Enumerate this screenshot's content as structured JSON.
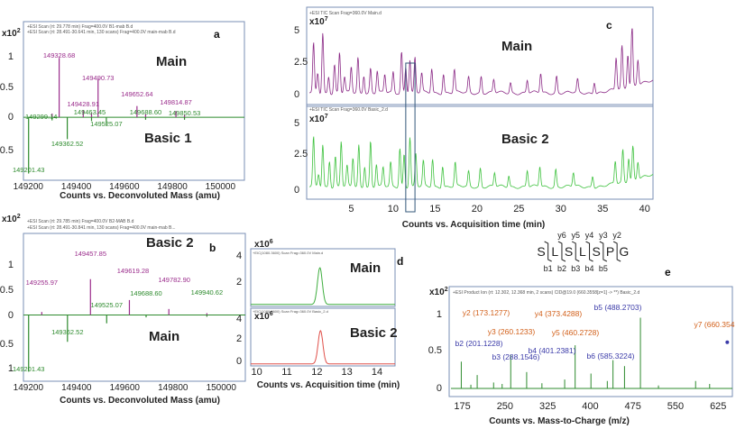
{
  "chart_data": [
    {
      "type": "line",
      "panel_letter": "a",
      "headers": [
        "+ESI Scan (rt: 29.778 min) Frag=400.0V B1-mab B.d",
        "+ESI Scan (rt: 28.491-30.641 min, 130 scans) Frag=400.0V main-mab B.d"
      ],
      "exponent_label": "x10",
      "exponent_power": "2",
      "xlabel": "Counts vs. Deconvoluted Mass (amu)",
      "xlim": [
        149180,
        150100
      ],
      "ylim": [
        -0.95,
        1.3
      ],
      "x_ticks": [
        "149200",
        "149400",
        "149600",
        "149800",
        "150000"
      ],
      "y_ticks": [
        "1",
        "0.5",
        "0",
        "-0.5"
      ],
      "series": [
        {
          "name": "Main",
          "color": "#9b2d8c",
          "peaks": [
            [
              149299.14,
              0.06
            ],
            [
              149328.68,
              0.95
            ],
            [
              149428.91,
              0.11
            ],
            [
              149463.45,
              0.07
            ],
            [
              149490.73,
              0.62
            ],
            [
              149652.64,
              0.18
            ],
            [
              149688.6,
              0.05
            ],
            [
              149814.87,
              0.1
            ],
            [
              149850.53,
              0.04
            ]
          ],
          "labels": [
            [
              "149328.68",
              149328.68
            ],
            [
              "149490.73",
              149490.73
            ],
            [
              "149428.91",
              149428.91
            ],
            [
              "149652.64",
              149652.64
            ],
            [
              "149814.87",
              149814.87
            ]
          ]
        },
        {
          "name": "Basic 1",
          "color": "#2e8b2e",
          "peaks": [
            [
              149201.43,
              -0.9
            ],
            [
              149299.14,
              -0.05
            ],
            [
              149362.52,
              -0.35
            ],
            [
              149463.45,
              -0.06
            ],
            [
              149525.07,
              -0.12
            ],
            [
              149688.6,
              -0.04
            ],
            [
              149850.53,
              -0.04
            ]
          ],
          "labels": [
            [
              "149201.43",
              149201.43
            ],
            [
              "149362.52",
              149362.52
            ],
            [
              "149525.07",
              149525.07
            ],
            [
              "149299.14",
              149299.14
            ],
            [
              "149463.45",
              149463.45
            ],
            [
              "149688.60",
              149688.6
            ],
            [
              "149850.53",
              149850.53
            ]
          ]
        }
      ],
      "annotations": [
        "Main",
        "Basic 1"
      ]
    },
    {
      "type": "line",
      "panel_letter": "b",
      "headers": [
        "+ESI Scan (rt: 29.785 min) Frag=400.0V B2-MAB B.d",
        "+ESI Scan (rt: 28.491-30.841 min, 130 scans) Frag=400.0V main-mab B..."
      ],
      "exponent_label": "x10",
      "exponent_power": "2",
      "xlabel": "Counts vs. Deconvoluted Mass (amu)",
      "xlim": [
        149180,
        150100
      ],
      "ylim": [
        -1.05,
        1.2
      ],
      "x_ticks": [
        "149200",
        "149400",
        "149600",
        "149800",
        "150000"
      ],
      "y_ticks": [
        "1",
        "0.5",
        "0",
        "-0.5",
        "1"
      ],
      "series": [
        {
          "name": "Basic 2",
          "color": "#9b2d8c",
          "peaks": [
            [
              149255.97,
              0.05
            ],
            [
              149457.85,
              0.6
            ],
            [
              149619.28,
              0.25
            ],
            [
              149782.9,
              0.1
            ],
            [
              149940.62,
              0.03
            ]
          ],
          "labels": [
            [
              "149457.85",
              149457.85
            ],
            [
              "149255.97",
              149255.97
            ],
            [
              "149619.28",
              149619.28
            ],
            [
              "149782.90",
              149782.9
            ]
          ]
        },
        {
          "name": "Main",
          "color": "#2e8b2e",
          "peaks": [
            [
              149201.43,
              -0.95
            ],
            [
              149362.52,
              -0.45
            ],
            [
              149525.07,
              -0.14
            ],
            [
              149688.6,
              -0.04
            ],
            [
              149940.62,
              -0.03
            ]
          ],
          "labels": [
            [
              "149201.43",
              149201.43
            ],
            [
              "149362.52",
              149362.52
            ],
            [
              "149525.07",
              149525.07
            ],
            [
              "149688.60",
              149688.6
            ],
            [
              "149940.62",
              149940.62
            ]
          ]
        }
      ],
      "annotations": [
        "Basic 2",
        "Main"
      ]
    },
    {
      "type": "line",
      "panel_letter": "c",
      "xlabel": "Counts vs. Acquisition time (min)",
      "xlim": [
        0,
        41
      ],
      "x_ticks": [
        "5",
        "10",
        "15",
        "20",
        "25",
        "30",
        "35",
        "40"
      ],
      "subplots": [
        {
          "name": "Main",
          "header": "+ESI TIC Scan Frag=360.0V Main.d",
          "exponent_label": "x10",
          "exponent_power": "7",
          "color": "#8b2a86",
          "ylim": [
            0,
            5.3
          ],
          "y_ticks": [
            "5",
            "2.5",
            "0"
          ],
          "peaks": [
            [
              0.5,
              3.8
            ],
            [
              1.0,
              1.5
            ],
            [
              1.6,
              4.7
            ],
            [
              2.3,
              1.3
            ],
            [
              3.0,
              2.2
            ],
            [
              3.6,
              3.1
            ],
            [
              4.2,
              1.2
            ],
            [
              5.0,
              2.0
            ],
            [
              5.8,
              2.7
            ],
            [
              6.5,
              1.4
            ],
            [
              7.3,
              1.9
            ],
            [
              8.1,
              1.7
            ],
            [
              9.0,
              1.4
            ],
            [
              10.0,
              1.6
            ],
            [
              11.0,
              3.2
            ],
            [
              11.5,
              2.0
            ],
            [
              12.0,
              2.6
            ],
            [
              12.6,
              2.7
            ],
            [
              13.4,
              1.5
            ],
            [
              14.6,
              1.9
            ],
            [
              16.0,
              1.5
            ],
            [
              17.3,
              1.8
            ],
            [
              19.0,
              1.2
            ],
            [
              20.5,
              1.3
            ],
            [
              22.0,
              1.0
            ],
            [
              24.0,
              0.8
            ],
            [
              26.0,
              1.0
            ],
            [
              27.6,
              1.5
            ],
            [
              29.5,
              1.3
            ],
            [
              32.0,
              1.0
            ],
            [
              34.0,
              0.9
            ],
            [
              36.6,
              2.5
            ],
            [
              37.3,
              3.3
            ],
            [
              38.0,
              2.6
            ],
            [
              38.5,
              4.8
            ],
            [
              39.2,
              2.0
            ]
          ]
        },
        {
          "name": "Basic 2",
          "header": "+ESI TIC Scan Frag=360.0V Basic_2.d",
          "exponent_label": "x10",
          "exponent_power": "7",
          "color": "#3fc23f",
          "ylim": [
            0,
            5.3
          ],
          "y_ticks": [
            "5",
            "2.5",
            "0"
          ],
          "peaks": [
            [
              0.5,
              3.9
            ],
            [
              1.1,
              1.0
            ],
            [
              1.6,
              3.4
            ],
            [
              2.4,
              2.1
            ],
            [
              3.1,
              2.4
            ],
            [
              3.8,
              3.6
            ],
            [
              4.5,
              1.6
            ],
            [
              5.2,
              2.3
            ],
            [
              5.9,
              3.3
            ],
            [
              6.6,
              1.7
            ],
            [
              7.3,
              3.6
            ],
            [
              8.0,
              1.8
            ],
            [
              8.8,
              1.5
            ],
            [
              9.7,
              1.9
            ],
            [
              10.8,
              3.1
            ],
            [
              11.3,
              2.6
            ],
            [
              12.0,
              4.0
            ],
            [
              12.7,
              2.6
            ],
            [
              13.6,
              2.0
            ],
            [
              14.7,
              2.2
            ],
            [
              15.9,
              1.7
            ],
            [
              17.4,
              1.9
            ],
            [
              19.0,
              1.2
            ],
            [
              20.4,
              1.5
            ],
            [
              22.1,
              1.1
            ],
            [
              23.8,
              0.9
            ],
            [
              26.0,
              1.3
            ],
            [
              27.5,
              1.6
            ],
            [
              29.4,
              1.4
            ],
            [
              31.5,
              1.1
            ],
            [
              33.8,
              0.9
            ],
            [
              36.5,
              1.8
            ],
            [
              37.4,
              2.6
            ],
            [
              38.1,
              1.9
            ],
            [
              38.6,
              2.7
            ],
            [
              39.2,
              1.4
            ]
          ]
        }
      ],
      "annotations": [
        "Main",
        "Basic 2"
      ]
    },
    {
      "type": "line",
      "panel_letter": "d",
      "xlabel": "Counts vs. Acquisition time (min)",
      "xlim": [
        9.8,
        14.6
      ],
      "x_ticks": [
        "10",
        "11",
        "12",
        "13",
        "14"
      ],
      "subplots": [
        {
          "name": "Main",
          "header": "+EIC(1080.3600) Scan Frag=360.0V Main.d",
          "exponent_label": "x10",
          "exponent_power": "6",
          "color": "#3fae3f",
          "ylim": [
            0,
            4.4
          ],
          "y_ticks": [
            "4",
            "2"
          ],
          "peak_center": 12.1,
          "peak_height": 3.2,
          "peak_width": 0.08
        },
        {
          "name": "Basic 2",
          "header": "+EIC(1080.3600) Scan Frag=360.0V Basic_2.d",
          "exponent_label": "x10",
          "exponent_power": "6",
          "color": "#e0504a",
          "ylim": [
            0,
            4.4
          ],
          "y_ticks": [
            "4",
            "2",
            "0"
          ],
          "peak_center": 12.12,
          "peak_height": 3.0,
          "peak_width": 0.08
        }
      ],
      "annotations": [
        "Main",
        "Basic 2"
      ]
    },
    {
      "type": "bar",
      "panel_letter": "e",
      "header": "+ESI Product Ion (rt: 12.302, 12.368 min, 2 scans) CID@19.0 (660.3558[z=1] -> **) Basic_2.d",
      "exponent_label": "x10",
      "exponent_power": "2",
      "xlabel": "Counts vs. Mass-to-Charge (m/z)",
      "xlim": [
        155,
        650
      ],
      "ylim": [
        0,
        1.15
      ],
      "x_ticks": [
        "175",
        "250",
        "325",
        "400",
        "475",
        "550",
        "625"
      ],
      "y_ticks": [
        "1",
        "0.5",
        "0"
      ],
      "sequence": [
        "S",
        "L",
        "S",
        "L",
        "S",
        "P",
        "G"
      ],
      "y_ions": [
        "y6",
        "y5",
        "y4",
        "y3",
        "y2"
      ],
      "b_ions": [
        "b1",
        "b2",
        "b3",
        "b4",
        "b5"
      ],
      "peaks": [
        [
          173.13,
          0.36
        ],
        [
          201.12,
          0.18
        ],
        [
          260.12,
          0.45
        ],
        [
          288.15,
          0.22
        ],
        [
          373.43,
          0.58
        ],
        [
          401.24,
          0.2
        ],
        [
          460.27,
          0.3
        ],
        [
          488.27,
          0.95
        ],
        [
          585.32,
          0.1
        ],
        [
          660.35,
          0.62
        ],
        [
          190,
          0.05
        ],
        [
          230,
          0.08
        ],
        [
          245,
          0.06
        ],
        [
          315,
          0.07
        ],
        [
          355,
          0.12
        ],
        [
          430,
          0.1
        ],
        [
          440,
          0.38
        ],
        [
          520,
          0.04
        ],
        [
          610,
          0.06
        ]
      ],
      "labels": [
        {
          "text": "y2 (173.1277)",
          "x": 173.13,
          "color": "#d2601a"
        },
        {
          "text": "b2 (201.1228)",
          "x": 201.12,
          "color": "#3a3aa8"
        },
        {
          "text": "y3 (260.1233)",
          "x": 260.12,
          "color": "#d2601a"
        },
        {
          "text": "b3 (288.1546)",
          "x": 288.15,
          "color": "#3a3aa8"
        },
        {
          "text": "y4 (373.4288)",
          "x": 373.43,
          "color": "#d2601a"
        },
        {
          "text": "b4 (401.2381)",
          "x": 401.24,
          "color": "#3a3aa8"
        },
        {
          "text": "y5 (460.2728)",
          "x": 460.27,
          "color": "#d2601a"
        },
        {
          "text": "b5 (488.2703)",
          "x": 488.27,
          "color": "#3a3aa8"
        },
        {
          "text": "b6 (585.3224)",
          "x": 585.32,
          "color": "#3a3aa8"
        },
        {
          "text": "y7 (660.354",
          "x": 660.35,
          "color": "#d2601a"
        }
      ]
    }
  ]
}
